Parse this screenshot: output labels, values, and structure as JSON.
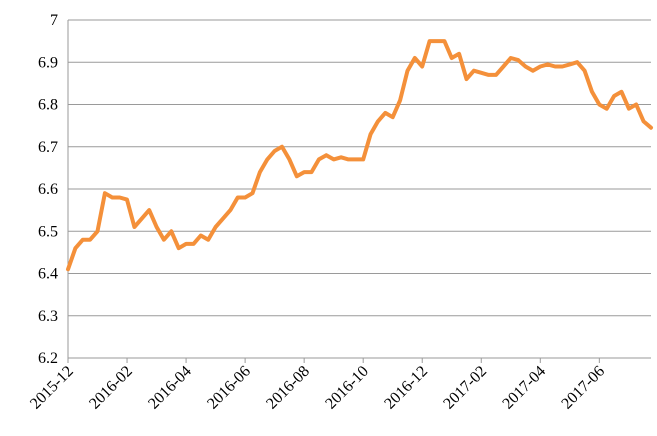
{
  "chart_data": {
    "type": "line",
    "categories": [
      "2015-12",
      null,
      null,
      null,
      null,
      null,
      null,
      null,
      "2016-02",
      null,
      null,
      null,
      null,
      null,
      null,
      null,
      "2016-04",
      null,
      null,
      null,
      null,
      null,
      null,
      null,
      "2016-06",
      null,
      null,
      null,
      null,
      null,
      null,
      null,
      "2016-08",
      null,
      null,
      null,
      null,
      null,
      null,
      null,
      "2016-10",
      null,
      null,
      null,
      null,
      null,
      null,
      null,
      "2016-12",
      null,
      null,
      null,
      null,
      null,
      null,
      null,
      "2017-02",
      null,
      null,
      null,
      null,
      null,
      null,
      null,
      "2017-04",
      null,
      null,
      null,
      null,
      null,
      null,
      null,
      "2017-06",
      null,
      null,
      null,
      null,
      null,
      null,
      null
    ],
    "series": [
      {
        "color": "#f4903a",
        "values": [
          6.41,
          6.46,
          6.48,
          6.48,
          6.5,
          6.59,
          6.58,
          6.58,
          6.575,
          6.51,
          6.53,
          6.55,
          6.51,
          6.48,
          6.5,
          6.46,
          6.47,
          6.47,
          6.49,
          6.48,
          6.51,
          6.53,
          6.55,
          6.58,
          6.58,
          6.59,
          6.64,
          6.67,
          6.69,
          6.7,
          6.67,
          6.63,
          6.64,
          6.64,
          6.67,
          6.68,
          6.67,
          6.675,
          6.67,
          6.67,
          6.67,
          6.73,
          6.76,
          6.78,
          6.77,
          6.81,
          6.88,
          6.91,
          6.89,
          6.95,
          6.95,
          6.95,
          6.91,
          6.92,
          6.86,
          6.88,
          6.875,
          6.87,
          6.87,
          6.89,
          6.91,
          6.905,
          6.89,
          6.88,
          6.89,
          6.895,
          6.89,
          6.89,
          6.895,
          6.9,
          6.88,
          6.83,
          6.8,
          6.79,
          6.82,
          6.83,
          6.79,
          6.8,
          6.76,
          6.745
        ]
      }
    ],
    "ylim": [
      6.2,
      7
    ],
    "yticks": [
      6.2,
      6.3,
      6.4,
      6.5,
      6.6,
      6.7,
      6.8,
      6.9,
      7
    ],
    "grid": true
  }
}
